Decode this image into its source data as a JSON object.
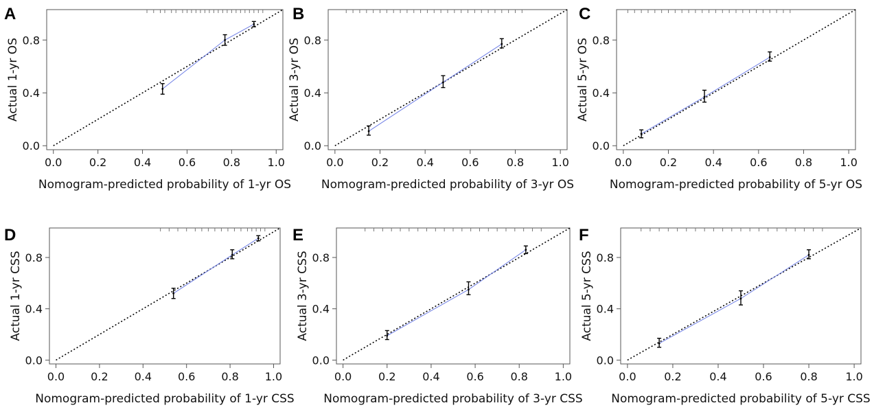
{
  "figure": {
    "colors": {
      "calibration_line": "#6f7fe6",
      "ideal_line": "#000000",
      "axes": "#555555",
      "error_bars": "#000000"
    }
  },
  "chart_data": [
    {
      "panel": "A",
      "type": "line",
      "xlabel": "Nomogram-predicted probability of 1-yr OS",
      "ylabel": "Actual 1-yr OS",
      "xlim": [
        -0.03,
        1.03
      ],
      "ylim": [
        -0.03,
        1.03
      ],
      "x_ticks": [
        "0.0",
        "0.2",
        "0.4",
        "0.6",
        "0.8",
        "1.0"
      ],
      "y_ticks": [
        "0.0",
        "0.4",
        "0.8"
      ],
      "series": [
        {
          "type": "calibration",
          "x": [
            0.49,
            0.77,
            0.9
          ],
          "y": [
            0.43,
            0.8,
            0.92
          ],
          "ci_low": [
            0.39,
            0.76,
            0.9
          ],
          "ci_high": [
            0.47,
            0.84,
            0.94
          ]
        },
        {
          "type": "ideal",
          "x": [
            0,
            1
          ],
          "y": [
            0,
            1
          ]
        }
      ],
      "rug_x": [
        0.42,
        0.45,
        0.48,
        0.5,
        0.53,
        0.55,
        0.58,
        0.6,
        0.62,
        0.64,
        0.66,
        0.68,
        0.7,
        0.72,
        0.74,
        0.76,
        0.78,
        0.8,
        0.82,
        0.84,
        0.86,
        0.88,
        0.9,
        0.92,
        0.94
      ]
    },
    {
      "panel": "B",
      "type": "line",
      "xlabel": "Nomogram-predicted probability of 3-yr OS",
      "ylabel": "Actual 3-yr OS",
      "xlim": [
        -0.03,
        1.03
      ],
      "ylim": [
        -0.03,
        1.03
      ],
      "x_ticks": [
        "0.0",
        "0.2",
        "0.4",
        "0.6",
        "0.8",
        "1.0"
      ],
      "y_ticks": [
        "0.0",
        "0.4",
        "0.8"
      ],
      "series": [
        {
          "type": "calibration",
          "x": [
            0.15,
            0.48,
            0.74
          ],
          "y": [
            0.11,
            0.48,
            0.77
          ],
          "ci_low": [
            0.08,
            0.44,
            0.74
          ],
          "ci_high": [
            0.15,
            0.53,
            0.81
          ]
        },
        {
          "type": "ideal",
          "x": [
            0,
            1
          ],
          "y": [
            0,
            1
          ]
        }
      ],
      "rug_x": [
        0.05,
        0.08,
        0.11,
        0.14,
        0.17,
        0.2,
        0.23,
        0.26,
        0.29,
        0.32,
        0.35,
        0.38,
        0.41,
        0.44,
        0.47,
        0.5,
        0.53,
        0.56,
        0.59,
        0.62,
        0.65,
        0.68,
        0.71,
        0.74,
        0.77,
        0.8,
        0.83
      ]
    },
    {
      "panel": "C",
      "type": "line",
      "xlabel": "Nomogram-predicted probability of 5-yr OS",
      "ylabel": "Actual 5-yr OS",
      "xlim": [
        -0.03,
        1.03
      ],
      "ylim": [
        -0.03,
        1.03
      ],
      "x_ticks": [
        "0.0",
        "0.2",
        "0.4",
        "0.6",
        "0.8",
        "1.0"
      ],
      "y_ticks": [
        "0.0",
        "0.4",
        "0.8"
      ],
      "series": [
        {
          "type": "calibration",
          "x": [
            0.08,
            0.36,
            0.65
          ],
          "y": [
            0.09,
            0.37,
            0.67
          ],
          "ci_low": [
            0.06,
            0.33,
            0.64
          ],
          "ci_high": [
            0.12,
            0.42,
            0.71
          ]
        },
        {
          "type": "ideal",
          "x": [
            0,
            1
          ],
          "y": [
            0,
            1
          ]
        }
      ],
      "rug_x": [
        0.02,
        0.05,
        0.08,
        0.11,
        0.14,
        0.17,
        0.2,
        0.23,
        0.26,
        0.29,
        0.32,
        0.35,
        0.38,
        0.41,
        0.44,
        0.47,
        0.5,
        0.53,
        0.56,
        0.59,
        0.62,
        0.65,
        0.68,
        0.71,
        0.74
      ]
    },
    {
      "panel": "D",
      "type": "line",
      "xlabel": "Nomogram-predicted probability of 1-yr CSS",
      "ylabel": "Actual 1-yr CSS",
      "xlim": [
        -0.03,
        1.03
      ],
      "ylim": [
        -0.03,
        1.03
      ],
      "x_ticks": [
        "0.0",
        "0.2",
        "0.4",
        "0.6",
        "0.8",
        "1.0"
      ],
      "y_ticks": [
        "0.0",
        "0.4",
        "0.8"
      ],
      "series": [
        {
          "type": "calibration",
          "x": [
            0.54,
            0.81,
            0.93
          ],
          "y": [
            0.52,
            0.82,
            0.95
          ],
          "ci_low": [
            0.48,
            0.79,
            0.93
          ],
          "ci_high": [
            0.56,
            0.86,
            0.97
          ]
        },
        {
          "type": "ideal",
          "x": [
            0,
            1
          ],
          "y": [
            0,
            1
          ]
        }
      ],
      "rug_x": [
        0.48,
        0.52,
        0.56,
        0.6,
        0.64,
        0.67,
        0.7,
        0.73,
        0.76,
        0.79,
        0.82,
        0.85,
        0.88,
        0.9,
        0.92,
        0.94,
        0.96
      ]
    },
    {
      "panel": "E",
      "type": "line",
      "xlabel": "Nomogram-predicted probability of 3-yr CSS",
      "ylabel": "Actual 3-yr CSS",
      "xlim": [
        -0.03,
        1.03
      ],
      "ylim": [
        -0.03,
        1.03
      ],
      "x_ticks": [
        "0.0",
        "0.2",
        "0.4",
        "0.6",
        "0.8",
        "1.0"
      ],
      "y_ticks": [
        "0.0",
        "0.4",
        "0.8"
      ],
      "series": [
        {
          "type": "calibration",
          "x": [
            0.2,
            0.57,
            0.83
          ],
          "y": [
            0.19,
            0.55,
            0.86
          ],
          "ci_low": [
            0.16,
            0.51,
            0.83
          ],
          "ci_high": [
            0.23,
            0.61,
            0.89
          ]
        },
        {
          "type": "ideal",
          "x": [
            0,
            1
          ],
          "y": [
            0,
            1
          ]
        }
      ],
      "rug_x": [
        0.1,
        0.14,
        0.18,
        0.22,
        0.26,
        0.3,
        0.34,
        0.38,
        0.42,
        0.46,
        0.5,
        0.54,
        0.58,
        0.62,
        0.66,
        0.7,
        0.74,
        0.78,
        0.82,
        0.86,
        0.9
      ]
    },
    {
      "panel": "F",
      "type": "line",
      "xlabel": "Nomogram-predicted probability of 5-yr CSS",
      "ylabel": "Actual 5-yr CSS",
      "xlim": [
        -0.03,
        1.03
      ],
      "ylim": [
        -0.03,
        1.03
      ],
      "x_ticks": [
        "0.0",
        "0.2",
        "0.4",
        "0.6",
        "0.8",
        "1.0"
      ],
      "y_ticks": [
        "0.0",
        "0.4",
        "0.8"
      ],
      "series": [
        {
          "type": "calibration",
          "x": [
            0.14,
            0.5,
            0.8
          ],
          "y": [
            0.13,
            0.48,
            0.82
          ],
          "ci_low": [
            0.1,
            0.43,
            0.79
          ],
          "ci_high": [
            0.17,
            0.54,
            0.86
          ]
        },
        {
          "type": "ideal",
          "x": [
            0,
            1
          ],
          "y": [
            0,
            1
          ]
        }
      ],
      "rug_x": [
        0.06,
        0.1,
        0.14,
        0.18,
        0.22,
        0.26,
        0.3,
        0.34,
        0.38,
        0.42,
        0.46,
        0.5,
        0.54,
        0.58,
        0.62,
        0.66,
        0.7,
        0.74,
        0.78,
        0.82,
        0.86
      ]
    }
  ]
}
